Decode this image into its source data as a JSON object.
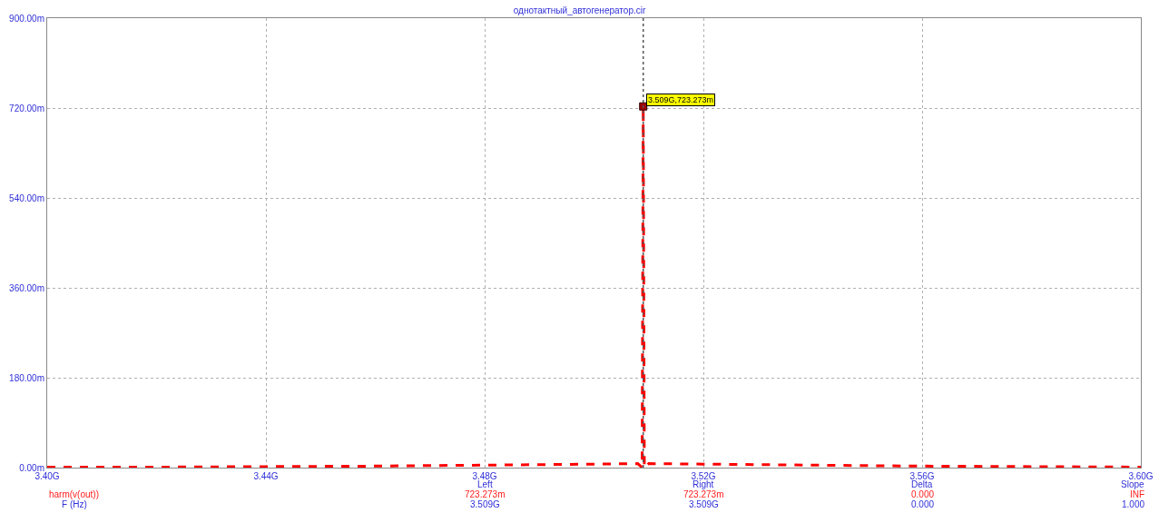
{
  "chart_data": {
    "type": "line",
    "title": "однотактный_автогенератор.cir",
    "x": [
      3.4,
      3.42,
      3.44,
      3.46,
      3.48,
      3.5,
      3.508,
      3.5088,
      3.509,
      3.5092,
      3.51,
      3.52,
      3.54,
      3.56,
      3.58,
      3.6
    ],
    "series": [
      {
        "color": "#ff0000",
        "values": [
          1,
          1,
          2,
          3,
          5,
          7,
          8,
          0,
          723.273,
          0,
          8,
          7,
          5,
          3,
          2,
          1
        ],
        "line_style": "dashed",
        "marker": "none"
      },
      {
        "type": "scatter",
        "color": "#a00000",
        "x": [
          3.509
        ],
        "values": [
          723.273
        ],
        "marker": "square"
      }
    ],
    "xlim": [
      3.4,
      3.6
    ],
    "xticks": [
      {
        "value": 3.4,
        "label": "3.40G"
      },
      {
        "value": 3.44,
        "label": "3.44G"
      },
      {
        "value": 3.48,
        "label": "3.48G"
      },
      {
        "value": 3.52,
        "label": "3.52G"
      },
      {
        "value": 3.56,
        "label": "3.56G"
      },
      {
        "value": 3.6,
        "label": "3.60G"
      }
    ],
    "ylim": [
      0,
      900
    ],
    "yticks": [
      {
        "value": 0,
        "label": "0.00m"
      },
      {
        "value": 180,
        "label": "180.00m"
      },
      {
        "value": 360,
        "label": "360.00m"
      },
      {
        "value": 540,
        "label": "540.00m"
      },
      {
        "value": 720,
        "label": "720.00m"
      },
      {
        "value": 900,
        "label": "900.00m"
      }
    ],
    "grid": true,
    "ref_lines": [
      {
        "axis": "x",
        "value": 3.509,
        "color": "#555555",
        "line_style": "dotted"
      }
    ],
    "annotations": [
      {
        "text": "3.509G,723.273m",
        "x": 3.509,
        "y": 723.273
      },
      "harm(v(out))",
      "F (Hz)",
      "Left",
      "723.273m",
      "3.509G",
      "Right",
      "723.273m",
      "3.509G",
      "Delta",
      "0.000",
      "0.000",
      "Slope",
      "INF",
      "1.000"
    ]
  }
}
